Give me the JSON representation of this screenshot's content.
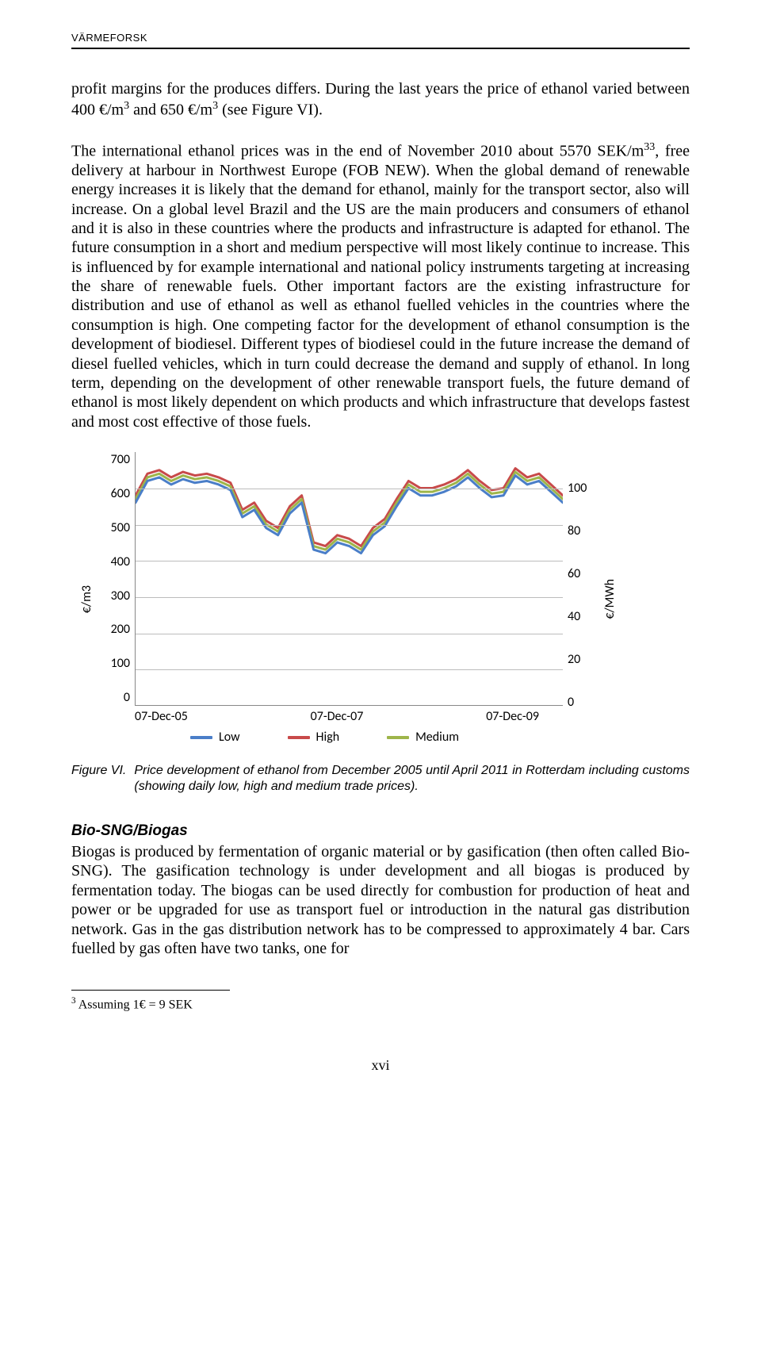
{
  "header": {
    "label": "VÄRMEFORSK"
  },
  "paragraph1": "profit margins for the produces differs. During the last years the price of ethanol varied between 400 €/m³ and 650 €/m³ (see Figure VI).",
  "paragraph2": "The international ethanol prices was in the end of November 2010 about 5570 SEK/m³³, free delivery at harbour in Northwest Europe (FOB NEW). When the global demand of renewable energy increases it is likely that the demand for ethanol, mainly for the transport sector, also will increase. On a global level Brazil and the US are the main producers and consumers of ethanol and it is also in these countries where the products and infrastructure is adapted for ethanol. The future consumption in a short and medium perspective will most likely continue to increase. This is influenced by for example international and national policy instruments targeting at increasing the share of renewable fuels. Other important factors are the existing infrastructure for distribution and use of ethanol as well as ethanol fuelled vehicles in the countries where the consumption is high. One competing factor for the development of ethanol consumption is the development of biodiesel. Different types of biodiesel could in the future increase the demand of diesel fuelled vehicles, which in turn could decrease the demand and supply of ethanol. In long term, depending on the development of other renewable transport fuels, the future demand of ethanol is most likely dependent on which products and which infrastructure that develops fastest and most cost effective of those fuels.",
  "chart": {
    "type": "line",
    "y_left_label": "€/m3",
    "y_right_label": "€/MWh",
    "y_left_ticks": [
      "700",
      "600",
      "500",
      "400",
      "300",
      "200",
      "100",
      "0"
    ],
    "y_right_ticks": [
      "100",
      "80",
      "60",
      "40",
      "20",
      "0"
    ],
    "x_ticks": [
      "07-Dec-05",
      "07-Dec-07",
      "07-Dec-09"
    ],
    "y_max": 700,
    "series": {
      "low": {
        "label": "Low",
        "color": "#4a7ec8",
        "values": [
          560,
          620,
          630,
          610,
          625,
          615,
          620,
          610,
          595,
          520,
          540,
          490,
          470,
          530,
          560,
          430,
          420,
          450,
          440,
          420,
          470,
          495,
          550,
          600,
          580,
          580,
          590,
          605,
          630,
          600,
          575,
          580,
          635,
          610,
          620,
          590,
          560
        ]
      },
      "high": {
        "label": "High",
        "color": "#c84a4a",
        "values": [
          580,
          640,
          650,
          630,
          645,
          635,
          640,
          630,
          615,
          540,
          560,
          510,
          490,
          550,
          580,
          450,
          440,
          470,
          460,
          440,
          490,
          515,
          570,
          620,
          600,
          600,
          610,
          625,
          650,
          620,
          595,
          600,
          655,
          630,
          640,
          610,
          580
        ]
      },
      "medium": {
        "label": "Medium",
        "color": "#9eb54a",
        "values": [
          570,
          630,
          640,
          620,
          635,
          625,
          630,
          620,
          605,
          530,
          550,
          500,
          480,
          540,
          570,
          440,
          430,
          460,
          450,
          430,
          480,
          505,
          560,
          610,
          590,
          590,
          600,
          615,
          640,
          610,
          585,
          590,
          645,
          620,
          630,
          600,
          570
        ]
      }
    },
    "grid_color": "#bcbcbc",
    "axis_color": "#888888",
    "background": "#ffffff"
  },
  "figure_caption": {
    "label": "Figure VI. ",
    "text": "Price development of ethanol from December 2005 until April 2011 in Rotterdam including customs (showing daily low, high and medium trade prices)."
  },
  "section2": {
    "heading": "Bio-SNG/Biogas",
    "body": "Biogas is produced by fermentation of organic material or by gasification (then often called Bio-SNG). The gasification technology is under development and all biogas is produced by fermentation today. The biogas can be used directly for combustion for production of heat and power or be upgraded for use as transport fuel or introduction in the natural gas distribution network. Gas in the gas distribution network has to be compressed to approximately 4 bar. Cars fuelled by gas often have two tanks, one for"
  },
  "footnote": {
    "marker": "3",
    "text": " Assuming 1€ = 9 SEK"
  },
  "page_num": "xvi"
}
